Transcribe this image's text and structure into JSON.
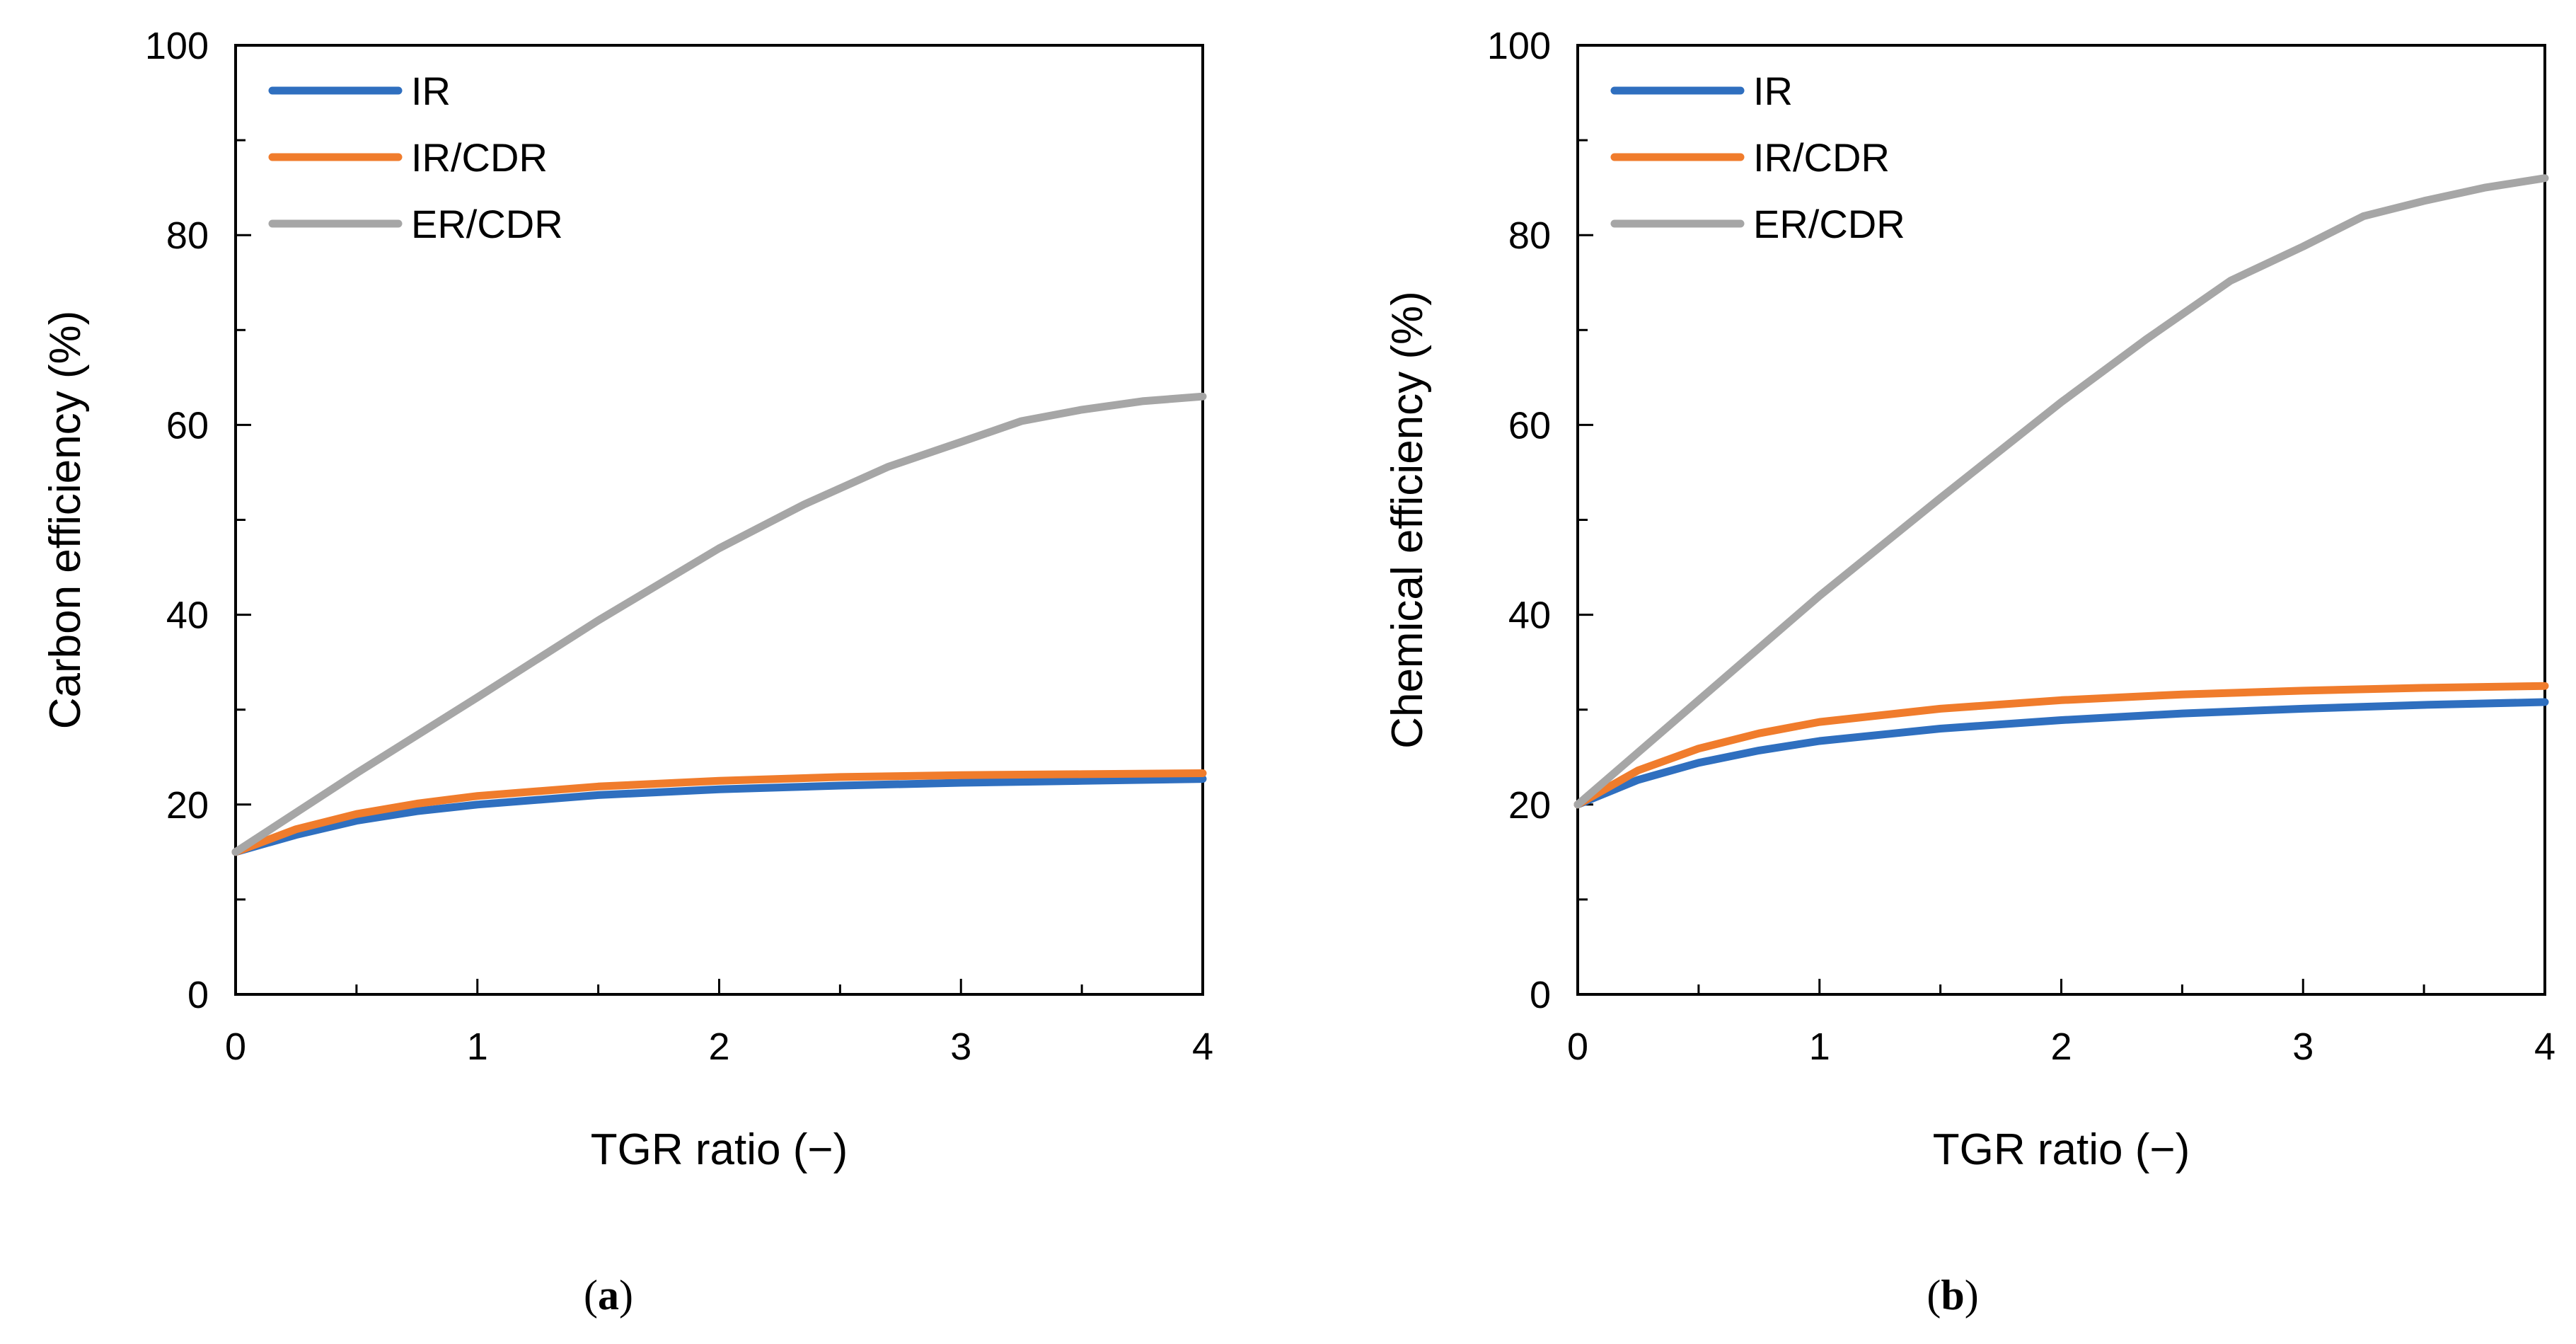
{
  "chart_data": [
    {
      "type": "line",
      "panel_label": "a",
      "title": "",
      "xlabel": "TGR ratio (−)",
      "ylabel": "Carbon efficiency (%)",
      "xlim": [
        0,
        4
      ],
      "ylim": [
        0,
        100
      ],
      "x_ticks": [
        0,
        1,
        2,
        3,
        4
      ],
      "y_ticks": [
        0,
        20,
        40,
        60,
        80,
        100
      ],
      "x_minor_step": 0.5,
      "y_minor_step": 10,
      "grid": false,
      "legend_position": "top-left",
      "series": [
        {
          "name": "IR",
          "color": "#2f6fbf",
          "x": [
            0,
            0.25,
            0.5,
            0.75,
            1,
            1.5,
            2,
            2.5,
            3,
            3.5,
            4
          ],
          "y": [
            15,
            16.8,
            18.3,
            19.3,
            20,
            21,
            21.6,
            22,
            22.3,
            22.5,
            22.7
          ]
        },
        {
          "name": "IR/CDR",
          "color": "#f07c2c",
          "x": [
            0,
            0.25,
            0.5,
            0.75,
            1,
            1.5,
            2,
            2.5,
            3,
            3.5,
            4
          ],
          "y": [
            15,
            17.4,
            19,
            20.1,
            20.9,
            21.9,
            22.5,
            22.9,
            23.1,
            23.2,
            23.3
          ]
        },
        {
          "name": "ER/CDR",
          "color": "#a6a6a6",
          "x": [
            0,
            0.5,
            1,
            1.5,
            2,
            2.35,
            2.7,
            3,
            3.25,
            3.5,
            3.75,
            4
          ],
          "y": [
            15,
            23.3,
            31.3,
            39.4,
            47,
            51.6,
            55.6,
            58.2,
            60.4,
            61.6,
            62.5,
            63
          ]
        }
      ]
    },
    {
      "type": "line",
      "panel_label": "b",
      "title": "",
      "xlabel": "TGR ratio (−)",
      "ylabel": "Chemical efficiency (%)",
      "xlim": [
        0,
        4
      ],
      "ylim": [
        0,
        100
      ],
      "x_ticks": [
        0,
        1,
        2,
        3,
        4
      ],
      "y_ticks": [
        0,
        20,
        40,
        60,
        80,
        100
      ],
      "x_minor_step": 0.5,
      "y_minor_step": 10,
      "grid": false,
      "legend_position": "top-left",
      "series": [
        {
          "name": "IR",
          "color": "#2f6fbf",
          "x": [
            0,
            0.25,
            0.5,
            0.75,
            1,
            1.5,
            2,
            2.5,
            3,
            3.5,
            4
          ],
          "y": [
            20,
            22.6,
            24.4,
            25.7,
            26.7,
            28,
            28.9,
            29.6,
            30.1,
            30.5,
            30.8
          ]
        },
        {
          "name": "IR/CDR",
          "color": "#f07c2c",
          "x": [
            0,
            0.25,
            0.5,
            0.75,
            1,
            1.5,
            2,
            2.5,
            3,
            3.5,
            4
          ],
          "y": [
            20,
            23.6,
            25.9,
            27.5,
            28.7,
            30.1,
            31,
            31.6,
            32,
            32.3,
            32.5
          ]
        },
        {
          "name": "ER/CDR",
          "color": "#a6a6a6",
          "x": [
            0,
            0.5,
            1,
            1.5,
            2,
            2.35,
            2.7,
            3,
            3.25,
            3.5,
            3.75,
            4
          ],
          "y": [
            20,
            31,
            42,
            52.3,
            62.4,
            69,
            75.2,
            78.8,
            82,
            83.6,
            85,
            86
          ]
        }
      ]
    }
  ]
}
